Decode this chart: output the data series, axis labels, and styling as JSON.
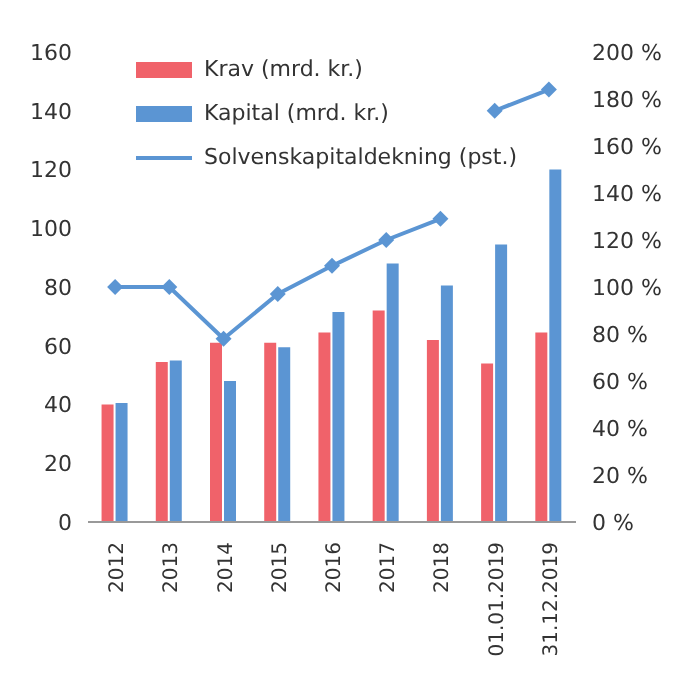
{
  "chart_data": {
    "type": "bar",
    "categories": [
      "2012",
      "2013",
      "2014",
      "2015",
      "2016",
      "2017",
      "2018",
      "01.01.2019",
      "31.12.2019"
    ],
    "series": [
      {
        "name": "Krav (mrd. kr.)",
        "color": "#f0626a",
        "values": [
          40,
          54.5,
          61,
          61,
          64.5,
          72,
          62,
          54,
          64.5
        ]
      },
      {
        "name": "Kapital (mrd. kr.)",
        "color": "#5b95d3",
        "values": [
          40.5,
          55,
          48,
          59.5,
          71.5,
          88,
          80.5,
          94.5,
          120
        ]
      },
      {
        "name": "Solvenskapitaldekning (pst.)",
        "type": "line",
        "axis": "y2",
        "color": "#5b95d3",
        "marker": "diamond",
        "values": [
          100,
          100,
          78,
          97,
          109,
          120,
          129,
          null,
          null
        ]
      },
      {
        "type": "line",
        "axis": "y2",
        "color": "#5b95d3",
        "marker": "diamond",
        "values": [
          null,
          null,
          null,
          null,
          null,
          null,
          null,
          175,
          184
        ]
      }
    ],
    "ylim": [
      0,
      160
    ],
    "yticks": [
      0,
      20,
      40,
      60,
      80,
      100,
      120,
      140,
      160
    ],
    "y2lim": [
      0,
      200
    ],
    "y2ticks": [
      {
        "value": 0,
        "label": "0 %"
      },
      {
        "value": 20,
        "label": "20 %"
      },
      {
        "value": 40,
        "label": "40 %"
      },
      {
        "value": 60,
        "label": "60 %"
      },
      {
        "value": 80,
        "label": "80 %"
      },
      {
        "value": 100,
        "label": "100 %"
      },
      {
        "value": 120,
        "label": "120 %"
      },
      {
        "value": 140,
        "label": "140 %"
      },
      {
        "value": 160,
        "label": "160 %"
      },
      {
        "value": 180,
        "label": "180 %"
      },
      {
        "value": 200,
        "label": "200 %"
      }
    ],
    "legend": "top left",
    "grid": false
  }
}
